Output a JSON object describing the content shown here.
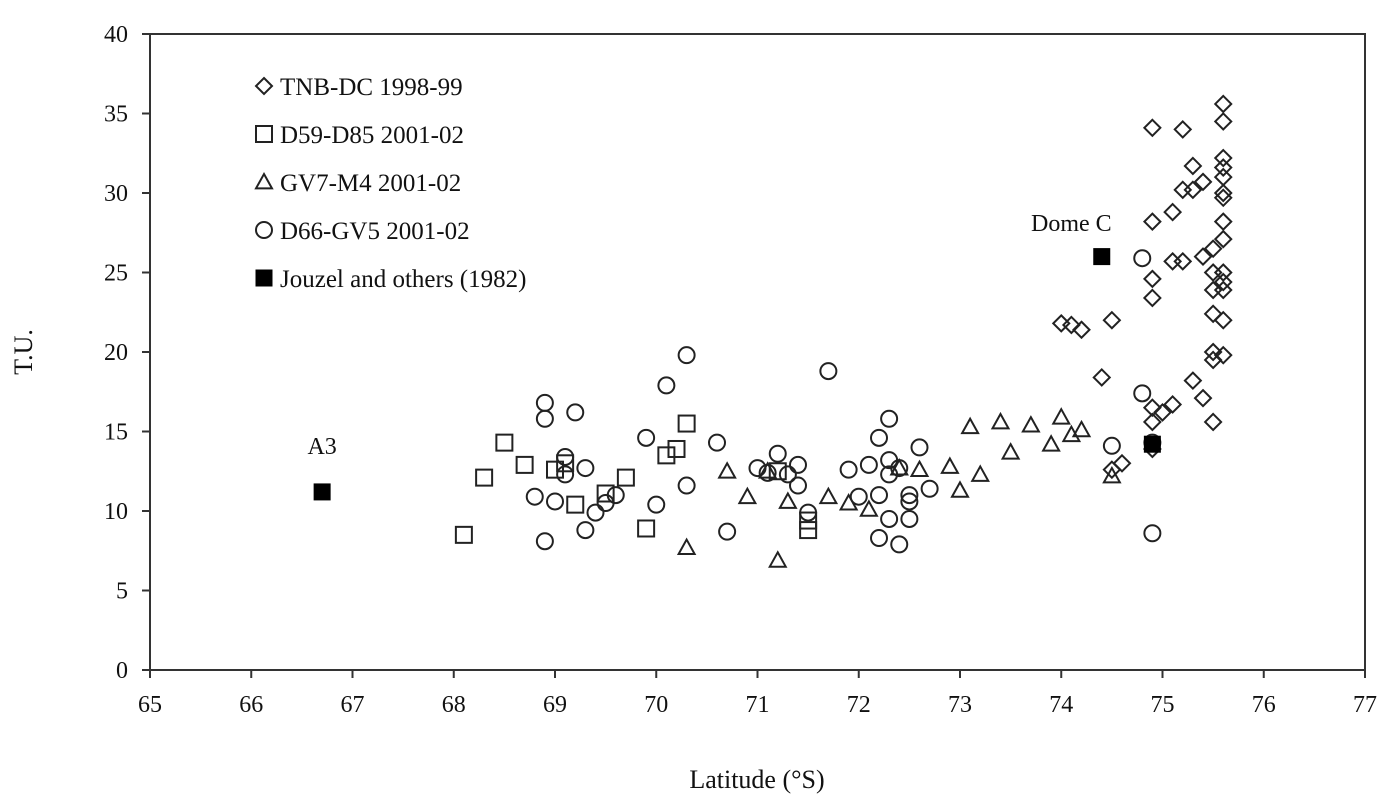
{
  "chart_data": {
    "type": "scatter",
    "xlabel": "Latitude (°S)",
    "ylabel": "T.U.",
    "xlim": [
      65,
      77
    ],
    "ylim": [
      0,
      40
    ],
    "xticks": [
      "65",
      "66",
      "67",
      "68",
      "69",
      "70",
      "71",
      "72",
      "73",
      "74",
      "75",
      "76",
      "77"
    ],
    "yticks": [
      "0",
      "5",
      "10",
      "15",
      "20",
      "25",
      "30",
      "35",
      "40"
    ],
    "grid": false,
    "legend_position": "top-left",
    "annotations": [
      {
        "text": "A3",
        "x": 66.7,
        "y": 13.6
      },
      {
        "text": "Dome C",
        "x": 74.1,
        "y": 27.6
      }
    ],
    "series": [
      {
        "name": "TNB-DC 1998-99",
        "marker": "diamond",
        "points": [
          [
            74.0,
            21.8
          ],
          [
            74.1,
            21.7
          ],
          [
            74.2,
            21.4
          ],
          [
            74.4,
            18.4
          ],
          [
            74.5,
            22.0
          ],
          [
            74.6,
            13.0
          ],
          [
            74.5,
            12.6
          ],
          [
            74.9,
            34.1
          ],
          [
            74.9,
            28.2
          ],
          [
            74.9,
            24.6
          ],
          [
            74.9,
            23.4
          ],
          [
            74.9,
            16.5
          ],
          [
            74.9,
            15.6
          ],
          [
            74.9,
            13.9
          ],
          [
            75.0,
            16.2
          ],
          [
            75.1,
            16.7
          ],
          [
            75.1,
            28.8
          ],
          [
            75.1,
            25.7
          ],
          [
            75.2,
            34.0
          ],
          [
            75.2,
            25.7
          ],
          [
            75.2,
            30.2
          ],
          [
            75.3,
            31.7
          ],
          [
            75.3,
            30.2
          ],
          [
            75.3,
            18.2
          ],
          [
            75.4,
            30.7
          ],
          [
            75.4,
            26.0
          ],
          [
            75.4,
            17.1
          ],
          [
            75.5,
            25.0
          ],
          [
            75.5,
            23.9
          ],
          [
            75.5,
            22.4
          ],
          [
            75.5,
            20.0
          ],
          [
            75.5,
            19.5
          ],
          [
            75.5,
            15.6
          ],
          [
            75.5,
            26.5
          ],
          [
            75.6,
            35.6
          ],
          [
            75.6,
            34.5
          ],
          [
            75.6,
            32.2
          ],
          [
            75.6,
            31.6
          ],
          [
            75.6,
            31.0
          ],
          [
            75.6,
            30.0
          ],
          [
            75.6,
            29.7
          ],
          [
            75.6,
            28.2
          ],
          [
            75.6,
            27.1
          ],
          [
            75.6,
            25.0
          ],
          [
            75.6,
            24.4
          ],
          [
            75.6,
            23.9
          ],
          [
            75.6,
            22.0
          ],
          [
            75.6,
            19.8
          ]
        ]
      },
      {
        "name": "D59-D85 2001-02",
        "marker": "square",
        "points": [
          [
            68.1,
            8.5
          ],
          [
            68.3,
            12.1
          ],
          [
            68.5,
            14.3
          ],
          [
            68.7,
            12.9
          ],
          [
            69.0,
            12.6
          ],
          [
            69.1,
            13.0
          ],
          [
            69.2,
            10.4
          ],
          [
            69.5,
            11.1
          ],
          [
            69.7,
            12.1
          ],
          [
            69.9,
            8.9
          ],
          [
            70.1,
            13.5
          ],
          [
            70.2,
            13.9
          ],
          [
            70.3,
            15.5
          ],
          [
            71.2,
            12.5
          ],
          [
            71.5,
            9.4
          ],
          [
            71.5,
            8.8
          ]
        ]
      },
      {
        "name": "GV7-M4 2001-02",
        "marker": "triangle",
        "points": [
          [
            70.3,
            7.7
          ],
          [
            70.7,
            12.5
          ],
          [
            70.9,
            10.9
          ],
          [
            71.1,
            12.5
          ],
          [
            71.2,
            6.9
          ],
          [
            71.3,
            10.6
          ],
          [
            71.7,
            10.9
          ],
          [
            71.9,
            10.5
          ],
          [
            72.1,
            10.1
          ],
          [
            72.4,
            12.7
          ],
          [
            72.6,
            12.6
          ],
          [
            72.9,
            12.8
          ],
          [
            73.0,
            11.3
          ],
          [
            73.1,
            15.3
          ],
          [
            73.2,
            12.3
          ],
          [
            73.4,
            15.6
          ],
          [
            73.5,
            13.7
          ],
          [
            73.7,
            15.4
          ],
          [
            73.9,
            14.2
          ],
          [
            74.0,
            15.9
          ],
          [
            74.1,
            14.8
          ],
          [
            74.2,
            15.1
          ],
          [
            74.5,
            12.2
          ]
        ]
      },
      {
        "name": "D66-GV5 2001-02",
        "marker": "circle",
        "points": [
          [
            68.9,
            16.8
          ],
          [
            68.9,
            15.8
          ],
          [
            69.2,
            16.2
          ],
          [
            68.8,
            10.9
          ],
          [
            68.9,
            8.1
          ],
          [
            69.0,
            10.6
          ],
          [
            69.1,
            12.3
          ],
          [
            69.1,
            13.4
          ],
          [
            69.3,
            12.7
          ],
          [
            69.3,
            8.8
          ],
          [
            69.4,
            9.9
          ],
          [
            69.5,
            10.5
          ],
          [
            69.6,
            11.0
          ],
          [
            69.9,
            14.6
          ],
          [
            70.0,
            10.4
          ],
          [
            70.1,
            17.9
          ],
          [
            70.3,
            19.8
          ],
          [
            70.3,
            11.6
          ],
          [
            70.6,
            14.3
          ],
          [
            70.7,
            8.7
          ],
          [
            71.0,
            12.7
          ],
          [
            71.1,
            12.4
          ],
          [
            71.2,
            13.6
          ],
          [
            71.3,
            12.3
          ],
          [
            71.4,
            12.9
          ],
          [
            71.4,
            11.6
          ],
          [
            71.5,
            9.9
          ],
          [
            71.7,
            18.8
          ],
          [
            71.9,
            12.6
          ],
          [
            72.0,
            10.9
          ],
          [
            72.1,
            12.9
          ],
          [
            72.2,
            14.6
          ],
          [
            72.2,
            11.0
          ],
          [
            72.2,
            8.3
          ],
          [
            72.3,
            15.8
          ],
          [
            72.3,
            13.2
          ],
          [
            72.3,
            12.3
          ],
          [
            72.3,
            9.5
          ],
          [
            72.4,
            12.7
          ],
          [
            72.4,
            7.9
          ],
          [
            72.5,
            11.0
          ],
          [
            72.5,
            10.6
          ],
          [
            72.5,
            9.5
          ],
          [
            72.6,
            14.0
          ],
          [
            72.7,
            11.4
          ],
          [
            74.5,
            14.1
          ],
          [
            74.8,
            17.4
          ],
          [
            74.8,
            25.9
          ],
          [
            74.9,
            8.6
          ],
          [
            74.9,
            14.3
          ]
        ]
      },
      {
        "name": "Jouzel and others (1982)",
        "marker": "filled-square",
        "points": [
          [
            66.7,
            11.2
          ],
          [
            74.4,
            26.0
          ],
          [
            74.9,
            14.2
          ]
        ]
      }
    ]
  }
}
